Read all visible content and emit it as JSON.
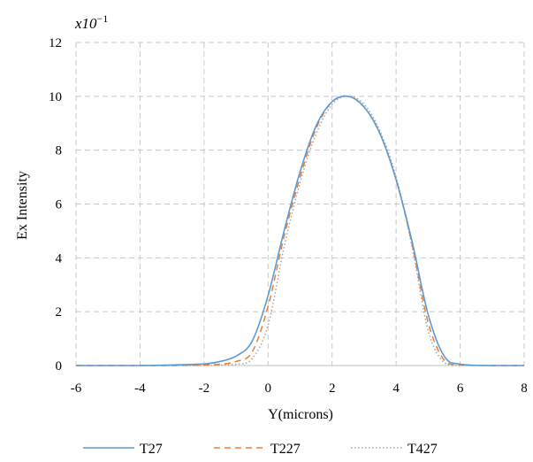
{
  "chart_data": {
    "type": "line",
    "title": "",
    "multiplier_label": "x10",
    "multiplier_exponent": "−1",
    "xlabel": "Y(microns)",
    "ylabel": "Ex Intensity",
    "xlim": [
      -6,
      8
    ],
    "ylim": [
      0,
      12
    ],
    "x_ticks": [
      -6,
      -4,
      -2,
      0,
      2,
      4,
      6,
      8
    ],
    "y_ticks": [
      0,
      2,
      4,
      6,
      8,
      10,
      12
    ],
    "grid": true,
    "legend_position": "bottom",
    "series": [
      {
        "name": "T27",
        "color": "#5b9bd5",
        "style": "solid",
        "x": [
          -6,
          -4,
          -3,
          -2,
          -1.5,
          -1,
          -0.5,
          0,
          0.5,
          1,
          1.5,
          2,
          2.5,
          3,
          3.5,
          4,
          4.5,
          5,
          5.5,
          6,
          7,
          8
        ],
        "y": [
          0,
          0,
          0.02,
          0.06,
          0.15,
          0.35,
          0.9,
          2.6,
          5.0,
          7.2,
          8.9,
          9.8,
          10.0,
          9.6,
          8.6,
          6.9,
          4.6,
          1.9,
          0.35,
          0.05,
          0,
          0
        ]
      },
      {
        "name": "T227",
        "color": "#ed7d31",
        "style": "dashed",
        "x": [
          -6,
          -4,
          -3,
          -2,
          -1.5,
          -1,
          -0.5,
          0,
          0.5,
          1,
          1.5,
          2,
          2.5,
          3,
          3.5,
          4,
          4.5,
          5,
          5.5,
          6,
          7,
          8
        ],
        "y": [
          0,
          0,
          0,
          0.02,
          0.05,
          0.15,
          0.5,
          2.2,
          4.8,
          7.0,
          8.8,
          9.8,
          10.0,
          9.6,
          8.6,
          6.9,
          4.5,
          1.6,
          0.2,
          0.02,
          0,
          0
        ]
      },
      {
        "name": "T427",
        "color": "#a5a5a5",
        "style": "dotted",
        "x": [
          -6,
          -4,
          -3,
          -2,
          -1.5,
          -1,
          -0.5,
          0,
          0.5,
          1,
          1.5,
          2,
          2.5,
          3,
          3.5,
          4,
          4.5,
          5,
          5.5,
          6,
          7,
          8
        ],
        "y": [
          0,
          0,
          0,
          0,
          0.02,
          0.05,
          0.25,
          1.5,
          4.4,
          6.8,
          8.6,
          9.7,
          10.0,
          9.7,
          8.7,
          7.0,
          4.4,
          1.3,
          0.1,
          0,
          0,
          0
        ]
      }
    ]
  }
}
